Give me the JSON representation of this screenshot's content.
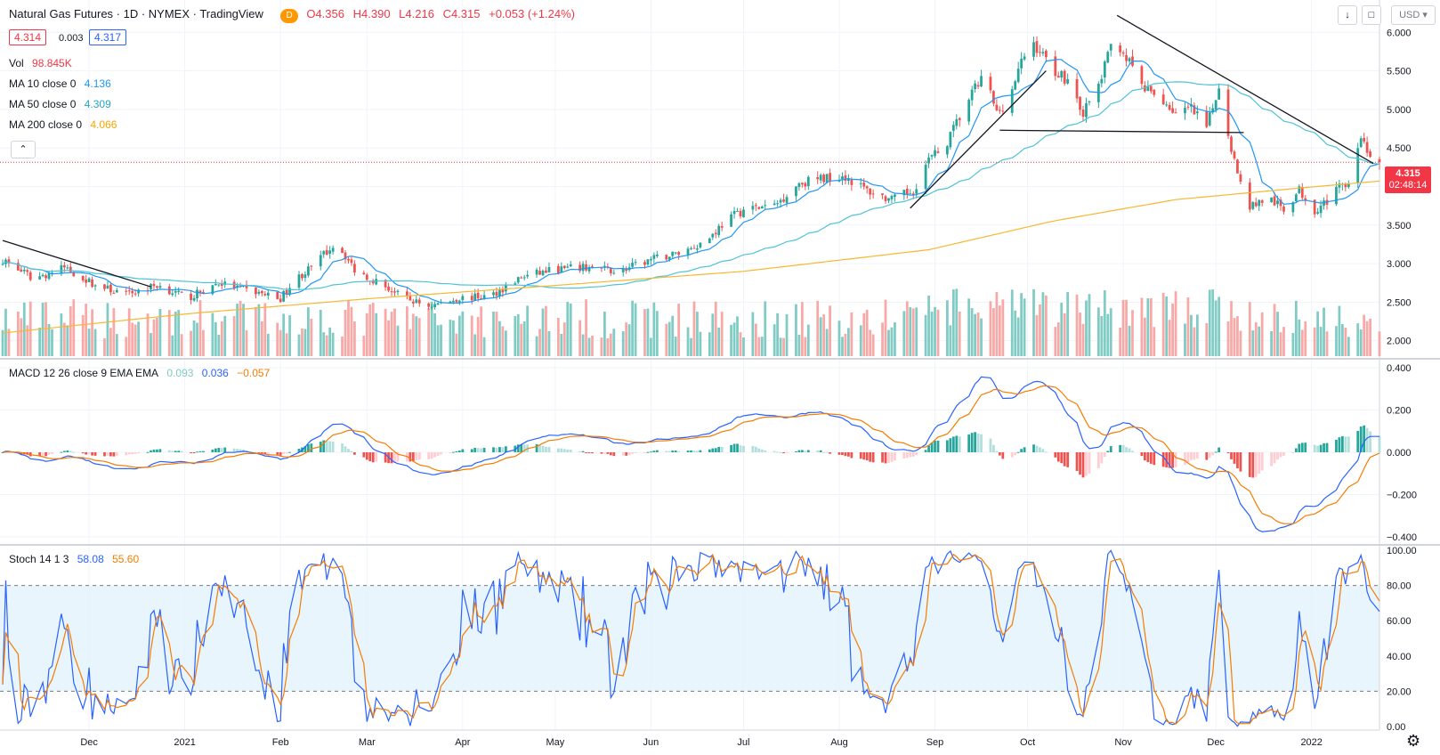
{
  "header": {
    "title": "Natural Gas Futures · 1D · NYMEX · TradingView",
    "d_badge": "D",
    "open": "O4.356",
    "high": "H4.390",
    "low": "L4.216",
    "close": "C4.315",
    "change": "+0.053 (+1.24%)",
    "bid": "4.314",
    "spread": "0.003",
    "ask": "4.317",
    "currency": "USD"
  },
  "legend": {
    "vol_label": "Vol",
    "vol_value": "98.845K",
    "ma10_label": "MA 10 close 0",
    "ma10_value": "4.136",
    "ma50_label": "MA 50 close 0",
    "ma50_value": "4.309",
    "ma200_label": "MA 200 close 0",
    "ma200_value": "4.066",
    "macd_label": "MACD 12 26 close 9 EMA EMA",
    "macd_hist": "0.093",
    "macd_line": "0.036",
    "macd_signal": "−0.057",
    "stoch_label": "Stoch 14 1 3",
    "stoch_k": "58.08",
    "stoch_d": "55.60"
  },
  "price_marker": {
    "price": "4.315",
    "countdown": "02:48:14"
  },
  "colors": {
    "up": "#26a69a",
    "down": "#ef5350",
    "ma10": "#2196f3",
    "ma50": "#4ec3d8",
    "ma200": "#f7b731",
    "macd": "#2962ff",
    "signal": "#f57c00",
    "stoch_k": "#2962ff",
    "stoch_d": "#f57c00",
    "band": "#e3f2fd"
  },
  "chart_data": {
    "type": "candlestick",
    "x_ticks": [
      {
        "label": "Dec",
        "day": 28
      },
      {
        "label": "2021",
        "day": 59
      },
      {
        "label": "Feb",
        "day": 90
      },
      {
        "label": "Mar",
        "day": 118
      },
      {
        "label": "Apr",
        "day": 149
      },
      {
        "label": "May",
        "day": 179
      },
      {
        "label": "Jun",
        "day": 210
      },
      {
        "label": "Jul",
        "day": 240
      },
      {
        "label": "Aug",
        "day": 271
      },
      {
        "label": "Sep",
        "day": 302
      },
      {
        "label": "Oct",
        "day": 332
      },
      {
        "label": "Nov",
        "day": 363
      },
      {
        "label": "Dec",
        "day": 393
      },
      {
        "label": "2022",
        "day": 424
      }
    ],
    "price_axis": {
      "ylim": [
        1.8,
        6.35
      ],
      "ticks": [
        "2.000",
        "2.500",
        "3.000",
        "3.500",
        "4.000",
        "4.500",
        "5.000",
        "5.500",
        "6.000"
      ]
    },
    "macd_axis": {
      "ylim": [
        -0.43,
        0.43
      ],
      "ticks": [
        "−0.400",
        "−0.200",
        "0.000",
        "0.200",
        "0.400"
      ]
    },
    "stoch_axis": {
      "ylim": [
        -2,
        102
      ],
      "ticks": [
        "0.00",
        "20.00",
        "40.00",
        "60.00",
        "80.00",
        "100.00"
      ],
      "band": [
        20,
        80
      ]
    },
    "close_anchors": [
      [
        0,
        3.05
      ],
      [
        10,
        2.8
      ],
      [
        20,
        2.95
      ],
      [
        30,
        2.72
      ],
      [
        40,
        2.6
      ],
      [
        50,
        2.72
      ],
      [
        60,
        2.55
      ],
      [
        70,
        2.75
      ],
      [
        80,
        2.65
      ],
      [
        90,
        2.55
      ],
      [
        95,
        2.8
      ],
      [
        100,
        2.95
      ],
      [
        108,
        3.28
      ],
      [
        114,
        2.92
      ],
      [
        122,
        2.75
      ],
      [
        130,
        2.55
      ],
      [
        138,
        2.45
      ],
      [
        148,
        2.55
      ],
      [
        158,
        2.58
      ],
      [
        168,
        2.82
      ],
      [
        178,
        2.92
      ],
      [
        190,
        2.95
      ],
      [
        200,
        2.9
      ],
      [
        210,
        3.05
      ],
      [
        220,
        3.15
      ],
      [
        228,
        3.3
      ],
      [
        234,
        3.55
      ],
      [
        240,
        3.7
      ],
      [
        250,
        3.75
      ],
      [
        258,
        4.05
      ],
      [
        265,
        4.1
      ],
      [
        272,
        4.15
      ],
      [
        280,
        3.95
      ],
      [
        288,
        3.82
      ],
      [
        295,
        3.95
      ],
      [
        300,
        4.35
      ],
      [
        305,
        4.5
      ],
      [
        310,
        4.9
      ],
      [
        314,
        5.2
      ],
      [
        318,
        5.45
      ],
      [
        322,
        4.95
      ],
      [
        326,
        5.15
      ],
      [
        330,
        5.6
      ],
      [
        333,
        5.9
      ],
      [
        336,
        5.75
      ],
      [
        341,
        5.5
      ],
      [
        346,
        5.35
      ],
      [
        350,
        4.95
      ],
      [
        355,
        5.3
      ],
      [
        360,
        5.95
      ],
      [
        365,
        5.6
      ],
      [
        370,
        5.25
      ],
      [
        375,
        5.15
      ],
      [
        380,
        4.95
      ],
      [
        385,
        5.0
      ],
      [
        390,
        4.75
      ],
      [
        394,
        5.3
      ],
      [
        397,
        4.7
      ],
      [
        400,
        4.15
      ],
      [
        404,
        3.75
      ],
      [
        410,
        3.85
      ],
      [
        415,
        3.7
      ],
      [
        420,
        3.95
      ],
      [
        425,
        3.7
      ],
      [
        430,
        3.85
      ],
      [
        436,
        4.1
      ],
      [
        440,
        4.65
      ],
      [
        443,
        4.4
      ],
      [
        446,
        4.3
      ]
    ],
    "ma200_anchors": [
      [
        0,
        2.1
      ],
      [
        60,
        2.35
      ],
      [
        120,
        2.55
      ],
      [
        180,
        2.72
      ],
      [
        240,
        2.9
      ],
      [
        300,
        3.18
      ],
      [
        340,
        3.55
      ],
      [
        380,
        3.83
      ],
      [
        420,
        3.98
      ],
      [
        446,
        4.07
      ]
    ],
    "trendlines": [
      [
        [
          0,
          3.3
        ],
        [
          48,
          2.7
        ]
      ],
      [
        [
          294,
          3.72
        ],
        [
          338,
          5.5
        ]
      ],
      [
        [
          323,
          4.73
        ],
        [
          402,
          4.7
        ]
      ],
      [
        [
          361,
          6.22
        ],
        [
          444,
          4.3
        ]
      ]
    ],
    "vol_range": [
      0,
      125000
    ]
  }
}
